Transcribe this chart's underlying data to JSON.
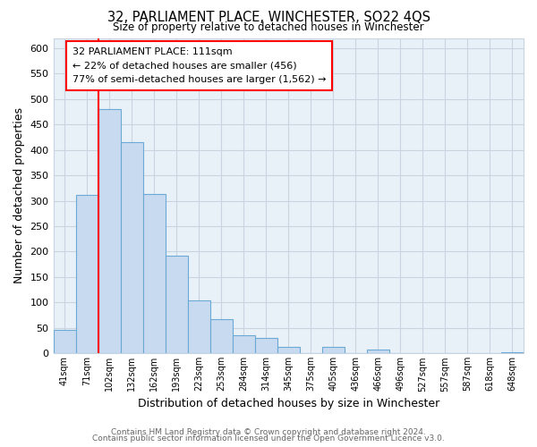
{
  "title": "32, PARLIAMENT PLACE, WINCHESTER, SO22 4QS",
  "subtitle": "Size of property relative to detached houses in Winchester",
  "xlabel": "Distribution of detached houses by size in Winchester",
  "ylabel": "Number of detached properties",
  "bar_labels": [
    "41sqm",
    "71sqm",
    "102sqm",
    "132sqm",
    "162sqm",
    "193sqm",
    "223sqm",
    "253sqm",
    "284sqm",
    "314sqm",
    "345sqm",
    "375sqm",
    "405sqm",
    "436sqm",
    "466sqm",
    "496sqm",
    "527sqm",
    "557sqm",
    "587sqm",
    "618sqm",
    "648sqm"
  ],
  "bar_values": [
    47,
    312,
    480,
    415,
    314,
    192,
    105,
    67,
    35,
    30,
    13,
    0,
    13,
    0,
    8,
    0,
    0,
    0,
    0,
    0,
    2
  ],
  "bar_color": "#c8daf0",
  "bar_edge_color": "#6aaad4",
  "plot_bg_color": "#e8f0f8",
  "red_line_x": 1.5,
  "annotation_title": "32 PARLIAMENT PLACE: 111sqm",
  "annotation_line1": "← 22% of detached houses are smaller (456)",
  "annotation_line2": "77% of semi-detached houses are larger (1,562) →",
  "ylim": [
    0,
    620
  ],
  "yticks": [
    0,
    50,
    100,
    150,
    200,
    250,
    300,
    350,
    400,
    450,
    500,
    550,
    600
  ],
  "footer_line1": "Contains HM Land Registry data © Crown copyright and database right 2024.",
  "footer_line2": "Contains public sector information licensed under the Open Government Licence v3.0.",
  "background_color": "#ffffff",
  "grid_color": "#c8d4e0"
}
